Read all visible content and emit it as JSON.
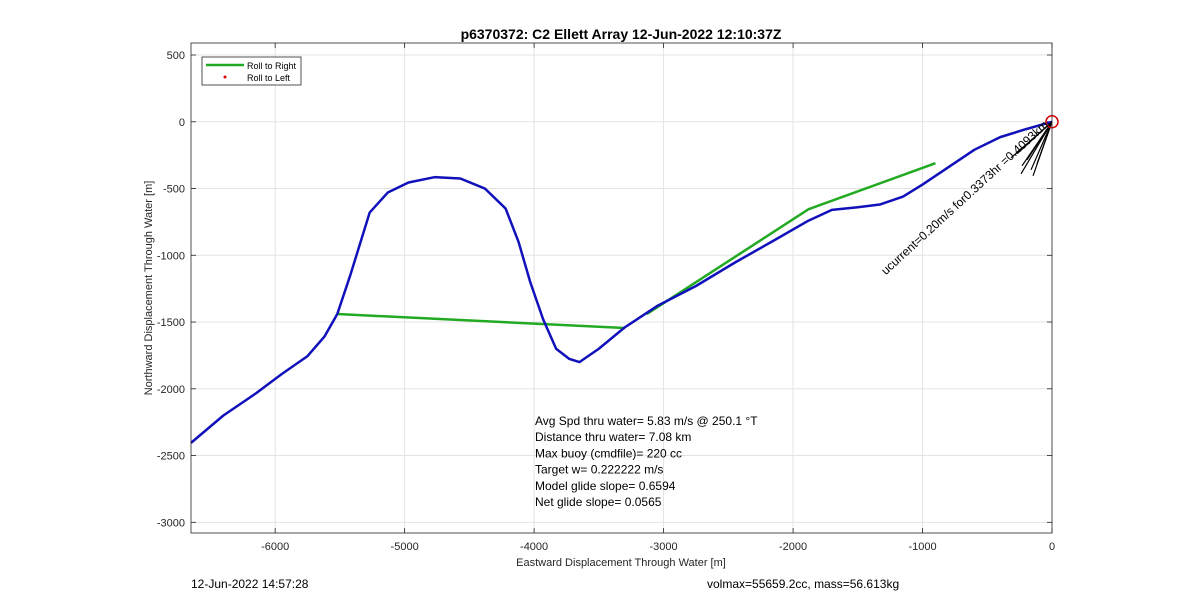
{
  "footer": {
    "timestamp": "12-Jun-2022 14:57:28",
    "mass_info": "volmax=55659.2cc, mass=56.613kg"
  },
  "chart_data": {
    "type": "line",
    "title": "p6370372: C2 Ellett Array 12-Jun-2022 12:10:37Z",
    "xlabel": "Eastward Displacement Through Water [m]",
    "ylabel": "Northward Displacement Through Water [m]",
    "xlim": [
      -6650,
      0
    ],
    "ylim": [
      -3080,
      590
    ],
    "xticks": [
      -6000,
      -5000,
      -4000,
      -3000,
      -2000,
      -1000,
      0
    ],
    "yticks": [
      500,
      0,
      -500,
      -1000,
      -1500,
      -2000,
      -2500,
      -3000
    ],
    "grid": true,
    "legend": {
      "placement": "top-left",
      "entries": [
        "Roll to Right",
        "Roll to Left"
      ]
    },
    "colors": {
      "track": "#1111bb",
      "roll_right": "#22aa22",
      "roll_left": "#dd0000",
      "current": "#000000"
    },
    "series": [
      {
        "role": "track",
        "x": [
          -6650,
          -6400,
          -6150,
          -5950,
          -5750,
          -5620,
          -5520,
          -5420,
          -5270,
          -5130,
          -4970,
          -4770,
          -4570,
          -4380,
          -4220,
          -4120,
          -4030,
          -3930,
          -3830,
          -3730,
          -3650,
          -3500,
          -3300,
          -3050,
          -2750,
          -2450,
          -2150,
          -1880,
          -1700,
          -1500,
          -1330,
          -1150,
          -1000,
          -800,
          -600,
          -400,
          -200,
          0
        ],
        "y": [
          -2405,
          -2200,
          -2035,
          -1890,
          -1755,
          -1610,
          -1440,
          -1150,
          -680,
          -530,
          -455,
          -415,
          -425,
          -500,
          -650,
          -900,
          -1200,
          -1480,
          -1700,
          -1775,
          -1800,
          -1700,
          -1540,
          -1380,
          -1230,
          -1055,
          -890,
          -740,
          -660,
          -640,
          -620,
          -560,
          -470,
          -340,
          -210,
          -115,
          -55,
          0
        ]
      },
      {
        "name": "Roll to Right",
        "x": [
          -5520,
          -3300
        ],
        "y": [
          -1440,
          -1545
        ]
      },
      {
        "name": "Roll to Right",
        "x": [
          -3130,
          -1880,
          -900
        ],
        "y": [
          -1440,
          -655,
          -310
        ]
      },
      {
        "name": "Roll to Left",
        "x": [],
        "y": []
      }
    ],
    "current_vector": {
      "x": [
        -270,
        0
      ],
      "y": [
        -240,
        0
      ],
      "label": "ucurrent=0.20m/s for0.3373hr =0.4093km"
    },
    "target_marker": {
      "x": 0,
      "y": 0
    },
    "annotations": [
      "Avg Spd thru water=  5.83 m/s @ 250.1 °T",
      "Distance thru water=  7.08 km",
      "Max buoy (cmdfile)= 220 cc",
      "Target w= 0.222222 m/s",
      "Model glide slope= 0.6594",
      "Net glide slope= 0.0565"
    ]
  }
}
